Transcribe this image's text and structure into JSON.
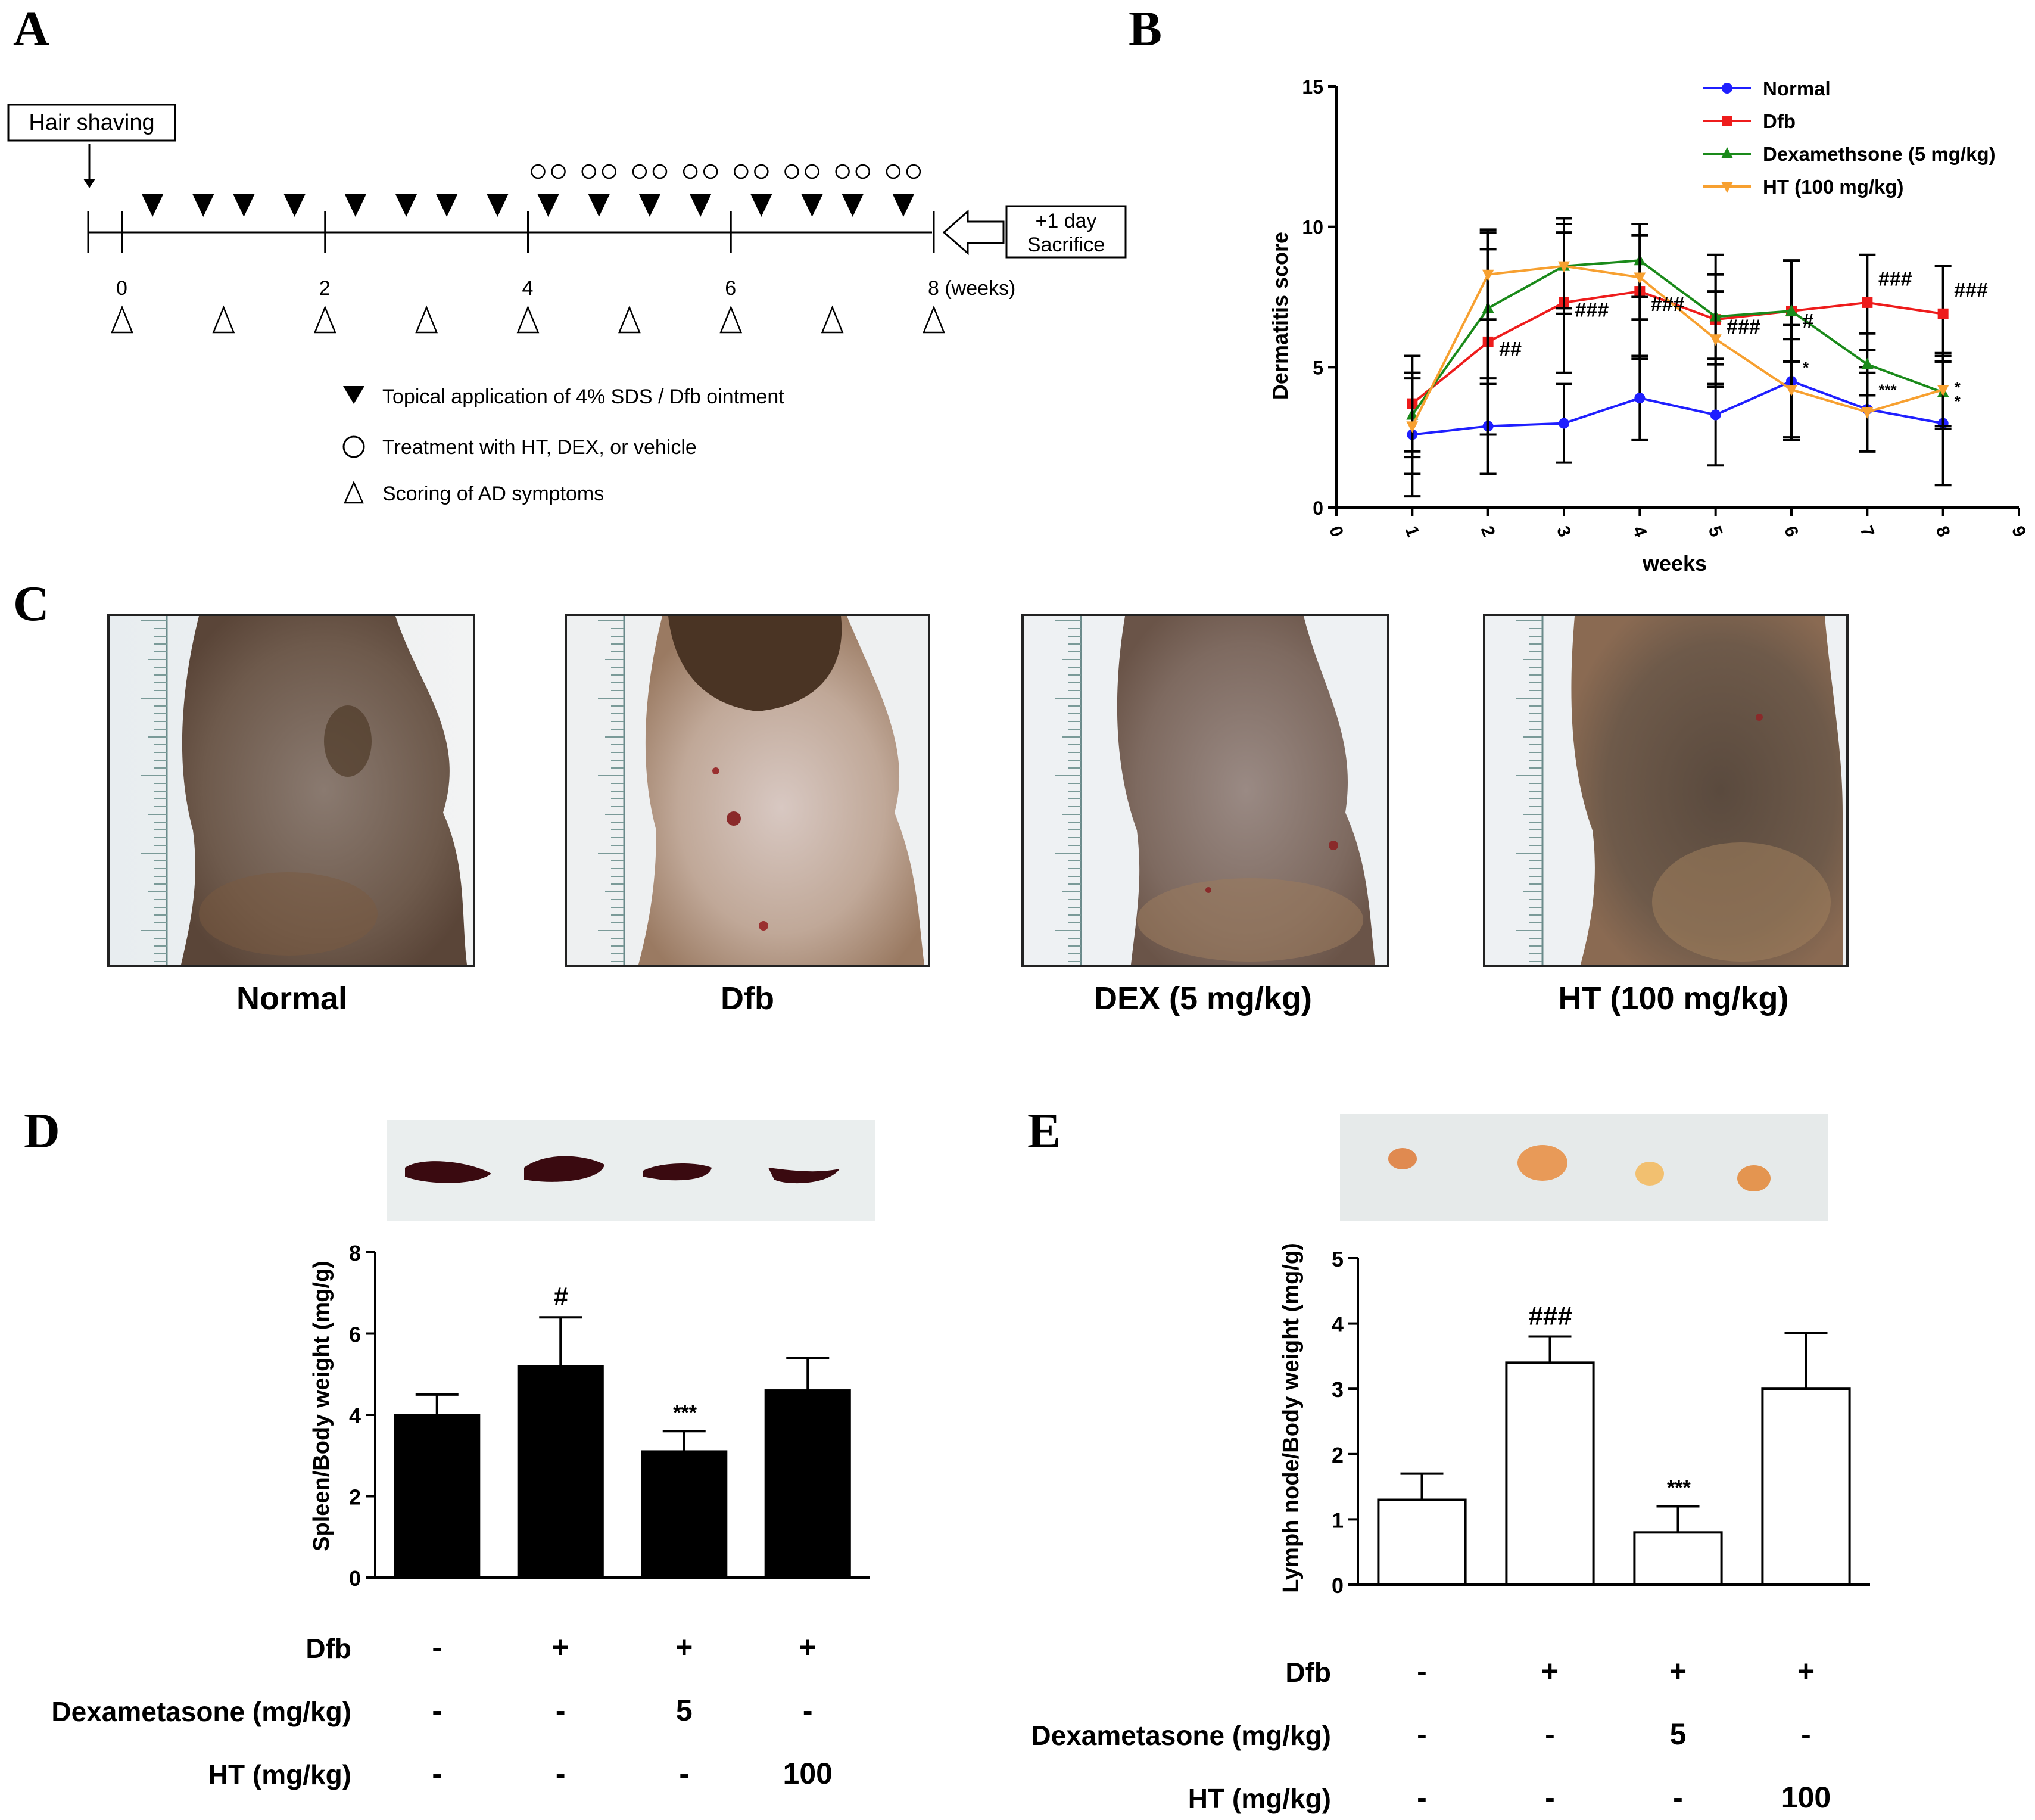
{
  "panels": {
    "a": "A",
    "b": "B",
    "c": "C",
    "d": "D",
    "e": "E"
  },
  "timeline": {
    "hair_shaving": "Hair shaving",
    "sacrifice_lines": [
      "+1 day",
      "Sacrifice"
    ],
    "week_ticks": [
      "0",
      "2",
      "4",
      "6",
      "8 (weeks)"
    ],
    "legend": [
      {
        "icon": "filled-triangle-icon",
        "text": "Topical application of 4% SDS / Dfb ointment"
      },
      {
        "icon": "open-circle-icon",
        "text": "Treatment with HT, DEX, or vehicle"
      },
      {
        "icon": "open-triangle-icon",
        "text": "Scoring of AD symptoms"
      }
    ],
    "application_weeks": [
      0.3,
      0.8,
      1.2,
      1.7,
      2.3,
      2.8,
      3.2,
      3.7,
      4.2,
      4.7,
      5.2,
      5.7,
      6.3,
      6.8,
      7.2,
      7.7
    ],
    "treatment_weeks": [
      4.1,
      4.3,
      4.6,
      4.8,
      5.1,
      5.3,
      5.6,
      5.8,
      6.1,
      6.3,
      6.6,
      6.8,
      7.1,
      7.3,
      7.6,
      7.8
    ],
    "scoring_weeks": [
      0,
      1,
      2,
      3,
      4,
      5,
      6,
      7,
      8
    ]
  },
  "chart_data": [
    {
      "id": "B",
      "type": "line",
      "title": "",
      "xlabel": "weeks",
      "ylabel": "Dermatitis score",
      "xlim": [
        0,
        9
      ],
      "ylim": [
        0,
        15
      ],
      "x_ticks": [
        "0",
        "1",
        "2",
        "3",
        "4",
        "5",
        "6",
        "7",
        "8",
        "9"
      ],
      "y_ticks": [
        "0",
        "5",
        "10",
        "15"
      ],
      "x": [
        1,
        2,
        3,
        4,
        5,
        6,
        7,
        8
      ],
      "series": [
        {
          "name": "Normal",
          "color": "#1f1fff",
          "marker": "circle",
          "values": [
            2.6,
            2.9,
            3.0,
            3.9,
            3.3,
            4.5,
            3.5,
            3.0
          ],
          "errors": [
            2.2,
            1.7,
            1.4,
            1.5,
            1.8,
            2.0,
            1.5,
            2.2
          ]
        },
        {
          "name": "Dfb",
          "color": "#ee1c1c",
          "marker": "square",
          "values": [
            3.7,
            5.9,
            7.3,
            7.7,
            6.7,
            7.0,
            7.3,
            6.9
          ],
          "errors": [
            1.7,
            3.3,
            2.5,
            2.4,
            2.3,
            1.8,
            1.7,
            1.7
          ]
        },
        {
          "name": "Dexamethsone (5 mg/kg)",
          "color": "#1a8a1a",
          "marker": "triangle-up",
          "values": [
            3.3,
            7.1,
            8.6,
            8.8,
            6.8,
            7.0,
            5.1,
            4.1
          ],
          "errors": [
            1.5,
            2.7,
            1.7,
            1.3,
            1.5,
            1.8,
            1.1,
            1.3
          ]
        },
        {
          "name": "HT (100 mg/kg)",
          "color": "#f7a030",
          "marker": "triangle-down",
          "values": [
            2.9,
            8.3,
            8.6,
            8.2,
            6.0,
            4.2,
            3.4,
            4.2
          ],
          "errors": [
            1.7,
            1.6,
            1.5,
            1.5,
            1.7,
            1.8,
            1.4,
            1.3
          ]
        }
      ],
      "annotations": [
        {
          "x": 2,
          "y": 5.4,
          "text": "##"
        },
        {
          "x": 3,
          "y": 6.8,
          "text": "###"
        },
        {
          "x": 4,
          "y": 7.0,
          "text": "###"
        },
        {
          "x": 5,
          "y": 6.2,
          "text": "###"
        },
        {
          "x": 6,
          "y": 6.4,
          "text": "#"
        },
        {
          "x": 7,
          "y": 7.9,
          "text": "###"
        },
        {
          "x": 8,
          "y": 7.5,
          "text": "###"
        },
        {
          "x": 6,
          "y": 4.8,
          "text": "*"
        },
        {
          "x": 7,
          "y": 4.0,
          "text": "***"
        },
        {
          "x": 8,
          "y": 4.1,
          "text": "*"
        },
        {
          "x": 8,
          "y": 3.6,
          "text": "*"
        }
      ]
    },
    {
      "id": "D",
      "type": "bar",
      "style": "filled",
      "title": "",
      "xlabel": "",
      "ylabel": "Spleen/Body weight (mg/g)",
      "ylim": [
        0,
        8
      ],
      "y_ticks": [
        "0",
        "2",
        "4",
        "6",
        "8"
      ],
      "categories": [
        "Normal",
        "Dfb",
        "Dfb + Dexametasone 5",
        "Dfb + HT 100"
      ],
      "values": [
        4.0,
        5.2,
        3.1,
        4.6
      ],
      "errors": [
        0.5,
        1.2,
        0.5,
        0.8
      ],
      "annotations": [
        "",
        "#",
        "***",
        ""
      ]
    },
    {
      "id": "E",
      "type": "bar",
      "style": "open",
      "title": "",
      "xlabel": "",
      "ylabel": "Lymph node/Body weight (mg/g)",
      "ylim": [
        0,
        5
      ],
      "y_ticks": [
        "0",
        "1",
        "2",
        "3",
        "4",
        "5"
      ],
      "categories": [
        "Normal",
        "Dfb",
        "Dfb + Dexametasone 5",
        "Dfb + HT 100"
      ],
      "values": [
        1.3,
        3.4,
        0.8,
        3.0
      ],
      "errors": [
        0.4,
        0.4,
        0.4,
        0.85
      ],
      "annotations": [
        "",
        "###",
        "***",
        ""
      ]
    }
  ],
  "photos_c": {
    "captions": [
      "Normal",
      "Dfb",
      "DEX (5 mg/kg)",
      "HT (100 mg/kg)"
    ]
  },
  "treatment_table": {
    "rows": [
      {
        "label": "Dfb",
        "values": [
          "-",
          "+",
          "+",
          "+"
        ]
      },
      {
        "label": "Dexametasone (mg/kg)",
        "values": [
          "-",
          "-",
          "5",
          "-"
        ]
      },
      {
        "label": "HT (mg/kg)",
        "values": [
          "-",
          "-",
          "-",
          "100"
        ]
      }
    ]
  }
}
